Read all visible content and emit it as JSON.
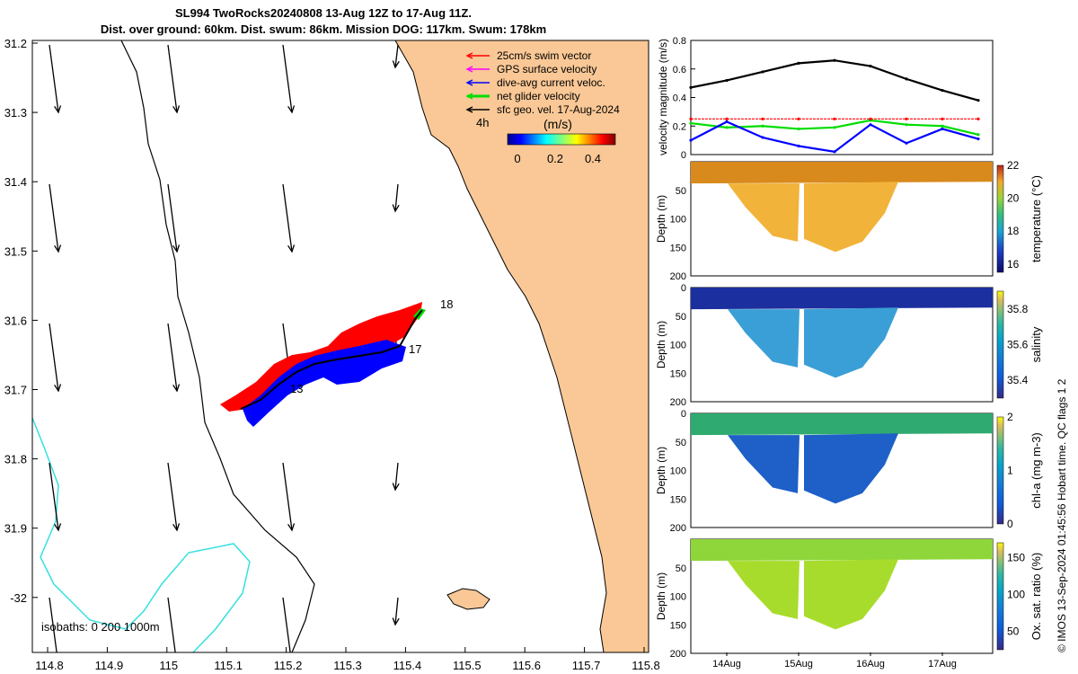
{
  "header": {
    "title_line1": "SL994 TwoRocks20240808 13-Aug 12Z to 17-Aug 11Z.",
    "title_line2": "Dist. over ground: 60km. Dist. swum: 86km. Mission DOG: 117km. Swum: 178km"
  },
  "map": {
    "lon_ticks": [
      "114.8",
      "114.9",
      "115",
      "115.1",
      "115.2",
      "115.3",
      "115.4",
      "115.5",
      "115.6",
      "115.7",
      "115.8"
    ],
    "lat_ticks": [
      "31.2",
      "31.3",
      "31.4",
      "31.5",
      "31.6",
      "31.7",
      "31.8",
      "31.9",
      "-32"
    ],
    "isobath_label": "isobaths: 0   200  1000m",
    "legend": [
      {
        "label": "25cm/s swim vector",
        "color": "#ff0000"
      },
      {
        "label": "GPS surface velocity",
        "color": "#ff00ff"
      },
      {
        "label": "dive-avg current veloc.",
        "color": "#0000ff"
      },
      {
        "label": "net glider velocity",
        "color": "#00dd00"
      },
      {
        "label": "sfc geo. vel. 17-Aug-2024",
        "color": "#000000"
      }
    ],
    "time_label": "4h",
    "colorbar": {
      "title": "(m/s)",
      "ticks": [
        "0",
        "0.2",
        "0.4"
      ]
    },
    "day_labels": [
      "18",
      "17",
      "13"
    ],
    "land_color": "#fac896",
    "track_colors": {
      "swim": "#ff0000",
      "current": "#0000ff",
      "net": "#00dd00"
    }
  },
  "chart_data": [
    {
      "type": "line",
      "ylabel": "velocity magnitude (m/s)",
      "ylim": [
        0,
        0.8
      ],
      "yticks": [
        "0",
        "0.2",
        "0.4",
        "0.6",
        "0.8"
      ],
      "x_days": [
        13.5,
        14.0,
        14.5,
        15.0,
        15.5,
        16.0,
        16.5,
        17.0,
        17.5
      ],
      "series": [
        {
          "name": "sfc geo. vel.",
          "color": "#000000",
          "values": [
            0.47,
            0.52,
            0.58,
            0.64,
            0.66,
            0.62,
            0.53,
            0.45,
            0.38
          ]
        },
        {
          "name": "net glider velocity",
          "color": "#00dd00",
          "values": [
            0.22,
            0.19,
            0.2,
            0.18,
            0.19,
            0.24,
            0.21,
            0.2,
            0.14
          ]
        },
        {
          "name": "dive-avg current veloc.",
          "color": "#0000ff",
          "values": [
            0.1,
            0.23,
            0.12,
            0.06,
            0.02,
            0.21,
            0.08,
            0.18,
            0.11
          ]
        },
        {
          "name": "25cm/s swim vector",
          "color": "#ff0000",
          "values": [
            0.25,
            0.25,
            0.25,
            0.25,
            0.25,
            0.25,
            0.25,
            0.25,
            0.25
          ]
        }
      ]
    },
    {
      "type": "heatmap",
      "ylabel": "Depth (m)",
      "clabel": "temperature (°C)",
      "ylim": [
        200,
        0
      ],
      "yticks": [
        "50",
        "100",
        "150",
        "200"
      ],
      "cticks": [
        "16",
        "18",
        "20",
        "22"
      ],
      "crange": [
        15.5,
        22
      ]
    },
    {
      "type": "heatmap",
      "ylabel": "Depth (m)",
      "clabel": "salinity",
      "ylim": [
        200,
        0
      ],
      "yticks": [
        "0",
        "50",
        "100",
        "150",
        "200"
      ],
      "cticks": [
        "35.4",
        "35.6",
        "35.8"
      ],
      "crange": [
        35.3,
        35.9
      ]
    },
    {
      "type": "heatmap",
      "ylabel": "Depth (m)",
      "clabel": "chl-a (mg m-3)",
      "ylim": [
        200,
        0
      ],
      "yticks": [
        "0",
        "50",
        "100",
        "150",
        "200"
      ],
      "cticks": [
        "0",
        "1",
        "2"
      ],
      "crange": [
        0,
        2
      ]
    },
    {
      "type": "heatmap",
      "ylabel": "Depth (m)",
      "clabel": "Ox. sat. ratio (%)",
      "ylim": [
        200,
        0
      ],
      "yticks": [
        "50",
        "100",
        "150",
        "200"
      ],
      "cticks": [
        "50",
        "100",
        "150"
      ],
      "crange": [
        25,
        170
      ]
    }
  ],
  "time_axis": [
    "14Aug",
    "15Aug",
    "16Aug",
    "17Aug"
  ],
  "footer": {
    "credit": "© IMOS 13-Sep-2024 01:45:56 Hobart time. QC flags 1  2"
  }
}
